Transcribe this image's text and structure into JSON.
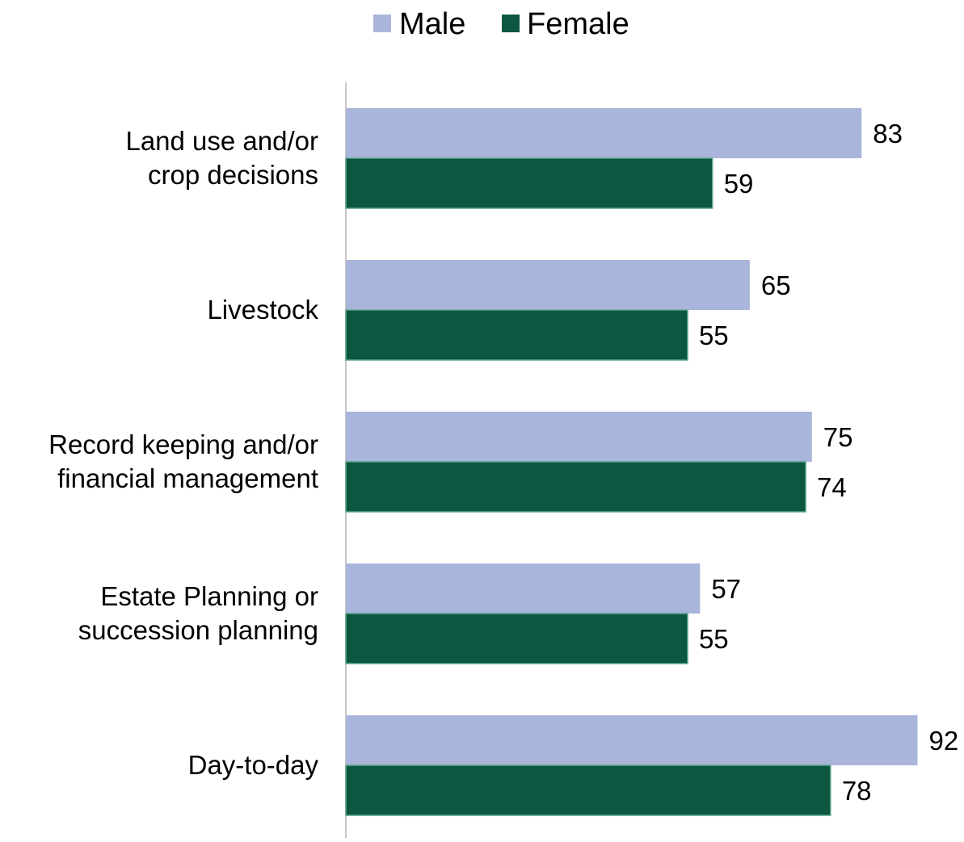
{
  "chart_data": {
    "type": "bar",
    "orientation": "horizontal",
    "categories": [
      [
        "Land use and/or",
        "crop decisions"
      ],
      [
        "Livestock"
      ],
      [
        "Record keeping and/or",
        "financial management"
      ],
      [
        "Estate Planning or",
        "succession planning"
      ],
      [
        "Day-to-day"
      ]
    ],
    "series": [
      {
        "name": "Male",
        "values": [
          83,
          65,
          75,
          57,
          92
        ],
        "color": "#a9b5da"
      },
      {
        "name": "Female",
        "values": [
          59,
          55,
          74,
          55,
          78
        ],
        "color": "#0c5741"
      }
    ],
    "title": "",
    "xlabel": "",
    "ylabel": "",
    "xlim": [
      0,
      100
    ],
    "legend": {
      "position": "top-center"
    },
    "grid": false,
    "data_labels": true,
    "colors": {
      "axis": "#c8c8c8",
      "female_bar_border": "#5fa58a"
    }
  }
}
